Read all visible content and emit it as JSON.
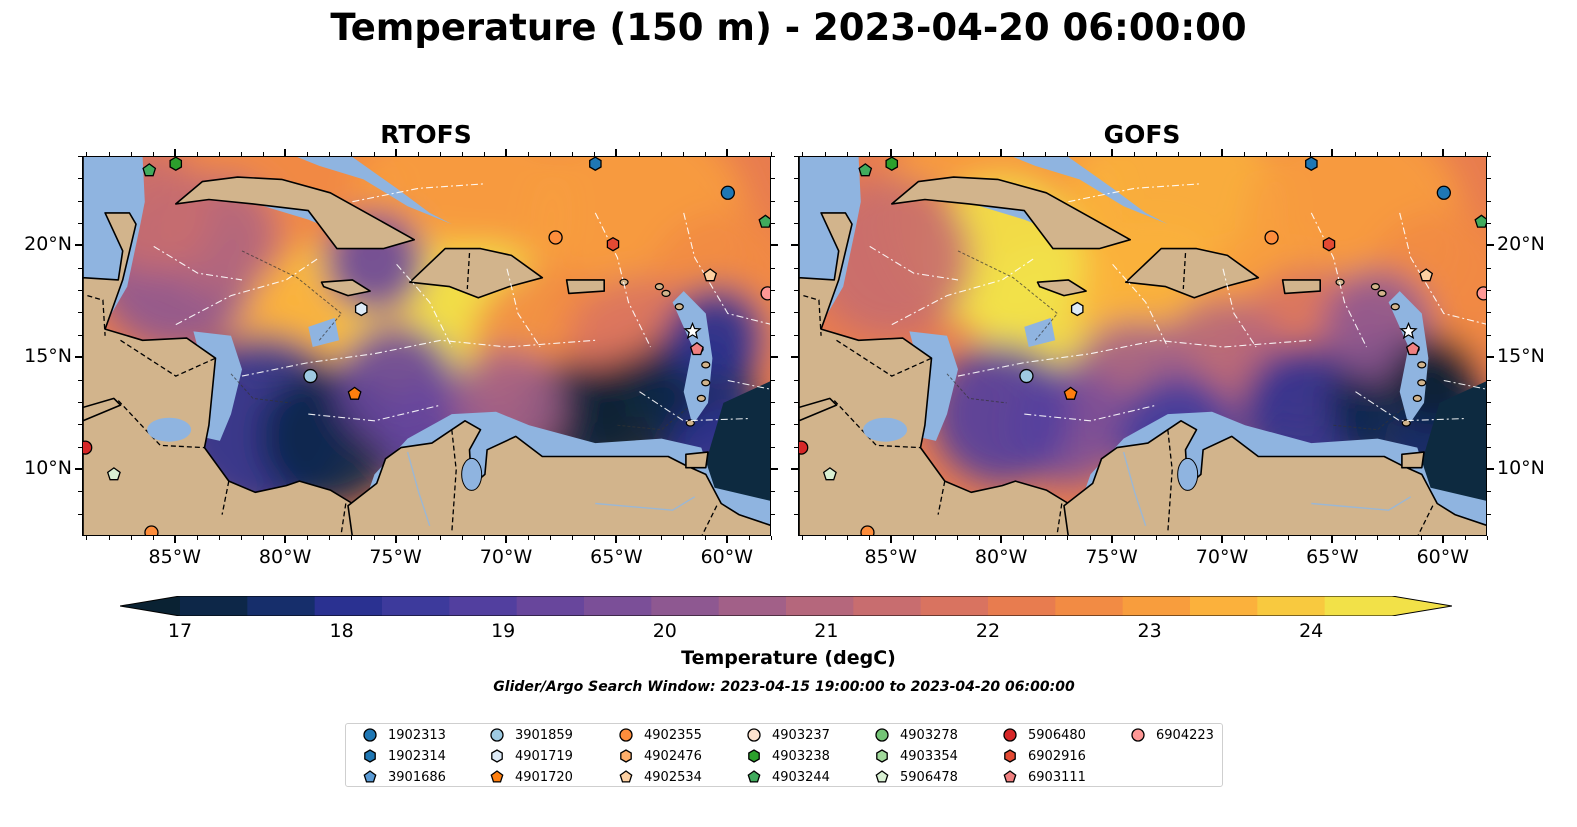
{
  "title": "Temperature (150 m) - 2023-04-20 06:00:00",
  "panels": [
    {
      "title": "RTOFS"
    },
    {
      "title": "GOFS"
    }
  ],
  "axes": {
    "lon_ticks": [
      "85°W",
      "80°W",
      "75°W",
      "70°W",
      "65°W",
      "60°W"
    ],
    "lat_ticks": [
      "20°N",
      "15°N",
      "10°N"
    ],
    "lon_range": [
      -89.2,
      -58.0
    ],
    "lat_range": [
      7.0,
      24.0
    ]
  },
  "colorbar": {
    "label": "Temperature (degC)",
    "ticks": [
      "17",
      "18",
      "19",
      "20",
      "21",
      "22",
      "23",
      "24"
    ],
    "range": [
      16.75,
      24.5
    ],
    "colors": [
      "#0a2233",
      "#0d2748",
      "#162e6b",
      "#2a3191",
      "#3d3a9c",
      "#523f9f",
      "#68469c",
      "#7b4f98",
      "#8e5891",
      "#a26088",
      "#b5677c",
      "#c86d6f",
      "#d97360",
      "#e87c4f",
      "#f28b44",
      "#f89d3d",
      "#fbb13c",
      "#f8c93f",
      "#f2e148"
    ],
    "extend": "both"
  },
  "subtitle": "Glider/Argo Search Window: 2023-04-15 19:00:00 to 2023-04-20 06:00:00",
  "legend": [
    {
      "id": "1902313",
      "marker": "circle",
      "color": "#1f77b4"
    },
    {
      "id": "1902314",
      "marker": "hexagon",
      "color": "#1f77b4"
    },
    {
      "id": "3901686",
      "marker": "pentagon",
      "color": "#5b9bd5"
    },
    {
      "id": "3901859",
      "marker": "circle",
      "color": "#9ecae1"
    },
    {
      "id": "4901719",
      "marker": "hexagon",
      "color": "#deebf7"
    },
    {
      "id": "4901720",
      "marker": "pentagon",
      "color": "#ff7f0e"
    },
    {
      "id": "4902355",
      "marker": "circle",
      "color": "#fd8d3c"
    },
    {
      "id": "4902476",
      "marker": "hexagon",
      "color": "#fdae6b"
    },
    {
      "id": "4902534",
      "marker": "pentagon",
      "color": "#fdd0a2"
    },
    {
      "id": "4903237",
      "marker": "circle",
      "color": "#fde3cf"
    },
    {
      "id": "4903238",
      "marker": "hexagon",
      "color": "#2ca02c"
    },
    {
      "id": "4903244",
      "marker": "pentagon",
      "color": "#41ab5d"
    },
    {
      "id": "4903278",
      "marker": "circle",
      "color": "#74c476"
    },
    {
      "id": "4903354",
      "marker": "hexagon",
      "color": "#a1d99b"
    },
    {
      "id": "5906478",
      "marker": "pentagon",
      "color": "#d9f0d3"
    },
    {
      "id": "5906480",
      "marker": "circle",
      "color": "#d62728"
    },
    {
      "id": "6902916",
      "marker": "hexagon",
      "color": "#e34a33"
    },
    {
      "id": "6903111",
      "marker": "pentagon",
      "color": "#f08080"
    },
    {
      "id": "6904223",
      "marker": "circle",
      "color": "#ff9896"
    }
  ],
  "floats": [
    {
      "lon": -60.0,
      "lat": 22.4,
      "marker": "circle",
      "color": "#1f77b4"
    },
    {
      "lon": -66.0,
      "lat": 23.7,
      "marker": "hexagon",
      "color": "#1f77b4"
    },
    {
      "lon": -78.9,
      "lat": 14.2,
      "marker": "circle",
      "color": "#9ecae1"
    },
    {
      "lon": -76.6,
      "lat": 17.2,
      "marker": "hexagon",
      "color": "#deebf7"
    },
    {
      "lon": -76.9,
      "lat": 13.4,
      "marker": "pentagon",
      "color": "#ff7f0e"
    },
    {
      "lon": -67.8,
      "lat": 20.4,
      "marker": "circle",
      "color": "#fd8d3c"
    },
    {
      "lon": -60.8,
      "lat": 18.7,
      "marker": "pentagon",
      "color": "#fdd0a2"
    },
    {
      "lon": -58.2,
      "lat": 17.9,
      "marker": "circle",
      "color": "#ff9896"
    },
    {
      "lon": -86.2,
      "lat": 23.4,
      "marker": "pentagon",
      "color": "#41ab5d"
    },
    {
      "lon": -85.0,
      "lat": 23.7,
      "marker": "hexagon",
      "color": "#2ca02c"
    },
    {
      "lon": -58.3,
      "lat": 21.1,
      "marker": "pentagon",
      "color": "#41ab5d"
    },
    {
      "lon": -87.8,
      "lat": 9.8,
      "marker": "pentagon",
      "color": "#d9f0d3"
    },
    {
      "lon": -65.2,
      "lat": 20.1,
      "marker": "hexagon",
      "color": "#e34a33"
    },
    {
      "lon": -61.4,
      "lat": 15.4,
      "marker": "pentagon",
      "color": "#f08080"
    },
    {
      "lon": -89.1,
      "lat": 11.0,
      "marker": "circle",
      "color": "#d62728"
    },
    {
      "lon": -86.1,
      "lat": 7.2,
      "marker": "circle",
      "color": "#fd8d3c"
    }
  ]
}
